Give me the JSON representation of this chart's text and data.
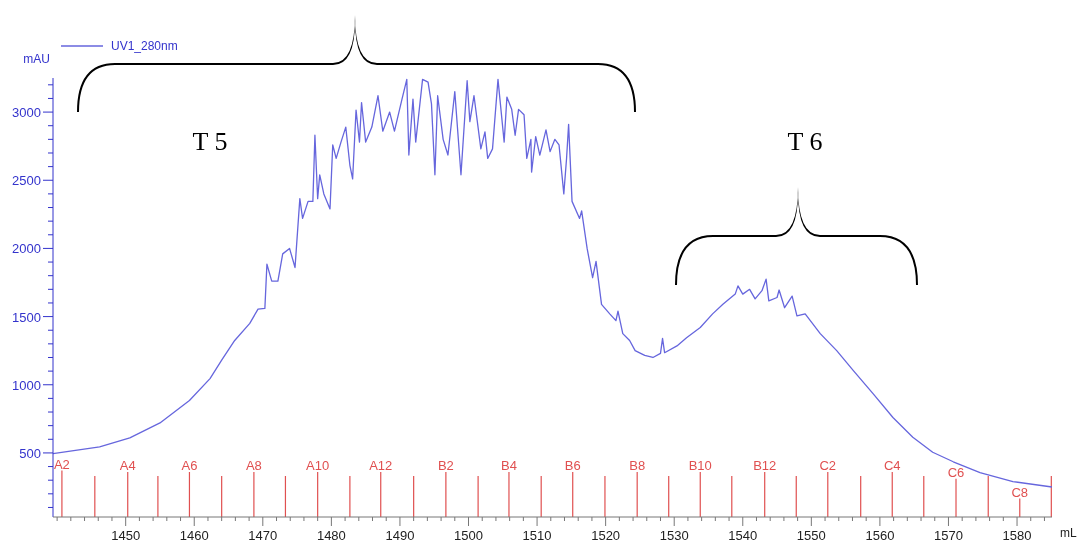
{
  "chart_data": {
    "type": "line",
    "xlabel": "mL",
    "ylabel": "mAU",
    "legend": "top left",
    "marker": "none",
    "line_style": "solid",
    "grid": false,
    "xlim": [
      1439.4,
      1585.1
    ],
    "ylim": [
      30,
      3250
    ],
    "xticks": [
      {
        "value": 1440,
        "label": null
      },
      {
        "value": 1442,
        "label": null
      },
      {
        "value": 1444,
        "label": null
      },
      {
        "value": 1446,
        "label": null
      },
      {
        "value": 1448,
        "label": null
      },
      1450,
      {
        "value": 1452,
        "label": null
      },
      {
        "value": 1454,
        "label": null
      },
      {
        "value": 1456,
        "label": null
      },
      {
        "value": 1458,
        "label": null
      },
      1460,
      {
        "value": 1462,
        "label": null
      },
      {
        "value": 1464,
        "label": null
      },
      {
        "value": 1466,
        "label": null
      },
      {
        "value": 1468,
        "label": null
      },
      1470,
      {
        "value": 1472,
        "label": null
      },
      {
        "value": 1474,
        "label": null
      },
      {
        "value": 1476,
        "label": null
      },
      {
        "value": 1478,
        "label": null
      },
      1480,
      {
        "value": 1482,
        "label": null
      },
      {
        "value": 1484,
        "label": null
      },
      {
        "value": 1486,
        "label": null
      },
      {
        "value": 1488,
        "label": null
      },
      1490,
      {
        "value": 1492,
        "label": null
      },
      {
        "value": 1494,
        "label": null
      },
      {
        "value": 1496,
        "label": null
      },
      {
        "value": 1498,
        "label": null
      },
      1500,
      {
        "value": 1502,
        "label": null
      },
      {
        "value": 1504,
        "label": null
      },
      {
        "value": 1506,
        "label": null
      },
      {
        "value": 1508,
        "label": null
      },
      1510,
      {
        "value": 1512,
        "label": null
      },
      {
        "value": 1514,
        "label": null
      },
      {
        "value": 1516,
        "label": null
      },
      {
        "value": 1518,
        "label": null
      },
      1520,
      {
        "value": 1522,
        "label": null
      },
      {
        "value": 1524,
        "label": null
      },
      {
        "value": 1526,
        "label": null
      },
      {
        "value": 1528,
        "label": null
      },
      1530,
      {
        "value": 1532,
        "label": null
      },
      {
        "value": 1534,
        "label": null
      },
      {
        "value": 1536,
        "label": null
      },
      {
        "value": 1538,
        "label": null
      },
      1540,
      {
        "value": 1542,
        "label": null
      },
      {
        "value": 1544,
        "label": null
      },
      {
        "value": 1546,
        "label": null
      },
      {
        "value": 1548,
        "label": null
      },
      1550,
      {
        "value": 1552,
        "label": null
      },
      {
        "value": 1554,
        "label": null
      },
      {
        "value": 1556,
        "label": null
      },
      {
        "value": 1558,
        "label": null
      },
      1560,
      {
        "value": 1562,
        "label": null
      },
      {
        "value": 1564,
        "label": null
      },
      {
        "value": 1566,
        "label": null
      },
      {
        "value": 1568,
        "label": null
      },
      1570,
      {
        "value": 1572,
        "label": null
      },
      {
        "value": 1574,
        "label": null
      },
      {
        "value": 1576,
        "label": null
      },
      {
        "value": 1578,
        "label": null
      },
      1580,
      {
        "value": 1582,
        "label": null
      },
      {
        "value": 1584,
        "label": null
      }
    ],
    "yticks": [
      {
        "value": 100,
        "label": null
      },
      {
        "value": 200,
        "label": null
      },
      {
        "value": 300,
        "label": null
      },
      {
        "value": 400,
        "label": null
      },
      500,
      {
        "value": 600,
        "label": null
      },
      {
        "value": 700,
        "label": null
      },
      {
        "value": 800,
        "label": null
      },
      {
        "value": 900,
        "label": null
      },
      1000,
      {
        "value": 1100,
        "label": null
      },
      {
        "value": 1200,
        "label": null
      },
      {
        "value": 1300,
        "label": null
      },
      {
        "value": 1400,
        "label": null
      },
      1500,
      {
        "value": 1600,
        "label": null
      },
      {
        "value": 1700,
        "label": null
      },
      {
        "value": 1800,
        "label": null
      },
      {
        "value": 1900,
        "label": null
      },
      2000,
      {
        "value": 2100,
        "label": null
      },
      {
        "value": 2200,
        "label": null
      },
      {
        "value": 2300,
        "label": null
      },
      {
        "value": 2400,
        "label": null
      },
      2500,
      {
        "value": 2600,
        "label": null
      },
      {
        "value": 2700,
        "label": null
      },
      {
        "value": 2800,
        "label": null
      },
      {
        "value": 2900,
        "label": null
      },
      3000,
      {
        "value": 3100,
        "label": null
      },
      {
        "value": 3200,
        "label": null
      }
    ],
    "series": [
      {
        "name": "UV1_280nm",
        "color": "#6666dd",
        "x": [
          1439.4,
          1446.2,
          1450.6,
          1455,
          1459.3,
          1462.3,
          1464,
          1465.9,
          1468.1,
          1469.3,
          1470.3,
          1470.6,
          1471.3,
          1472.2,
          1472.9,
          1473.9,
          1474.7,
          1475.4,
          1475.8,
          1476.6,
          1477.3,
          1477.6,
          1478,
          1478.3,
          1478.9,
          1479.8,
          1480.2,
          1480.7,
          1481.4,
          1482.1,
          1482.7,
          1483.1,
          1483.6,
          1484.1,
          1484.4,
          1485,
          1485.9,
          1486.8,
          1487.5,
          1488.5,
          1489.2,
          1490.3,
          1491,
          1491.3,
          1491.9,
          1492.3,
          1493.3,
          1494.1,
          1494.6,
          1495.1,
          1495.5,
          1496.3,
          1497,
          1498,
          1498.9,
          1499.8,
          1500.2,
          1500.8,
          1501.8,
          1502.4,
          1502.8,
          1503.5,
          1504.3,
          1505.2,
          1505.6,
          1506.3,
          1506.8,
          1507.3,
          1508.1,
          1508.5,
          1509.1,
          1509.2,
          1509.8,
          1510.4,
          1511.3,
          1511.9,
          1512.6,
          1513.2,
          1513.9,
          1514.3,
          1514.6,
          1515.1,
          1516.2,
          1516.5,
          1517.3,
          1518.1,
          1518.6,
          1519.4,
          1520.6,
          1521.5,
          1521.8,
          1522.5,
          1523.5,
          1524.3,
          1525.7,
          1526.9,
          1528,
          1528.3,
          1528.6,
          1530.4,
          1531.8,
          1533.8,
          1535.6,
          1537.1,
          1538.9,
          1539.3,
          1540,
          1541,
          1541.8,
          1542.8,
          1543.4,
          1543.8,
          1545,
          1545.3,
          1546.1,
          1547.2,
          1547.9,
          1549.1,
          1551.3,
          1553.7,
          1556.1,
          1559,
          1561.9,
          1564.8,
          1567.7,
          1570.7,
          1574.6,
          1579.4,
          1585.1
        ],
        "values": [
          495,
          545,
          610,
          720,
          885,
          1045,
          1180,
          1325,
          1450,
          1555,
          1560,
          1885,
          1760,
          1760,
          1960,
          2000,
          1860,
          2365,
          2220,
          2345,
          2345,
          2830,
          2365,
          2540,
          2400,
          2290,
          2760,
          2660,
          2780,
          2890,
          2610,
          2510,
          3015,
          2780,
          3070,
          2780,
          2890,
          3120,
          2860,
          3000,
          2860,
          3095,
          3240,
          2685,
          3095,
          2780,
          3240,
          3220,
          3060,
          2540,
          3120,
          2800,
          2685,
          3150,
          2540,
          3230,
          2930,
          3120,
          2730,
          2855,
          2660,
          2730,
          3240,
          2780,
          3110,
          3020,
          2830,
          3020,
          2980,
          2660,
          2800,
          2560,
          2820,
          2685,
          2870,
          2710,
          2800,
          2760,
          2400,
          2660,
          2910,
          2345,
          2220,
          2275,
          2000,
          1785,
          1905,
          1590,
          1520,
          1470,
          1540,
          1375,
          1325,
          1250,
          1215,
          1200,
          1230,
          1340,
          1235,
          1285,
          1345,
          1420,
          1520,
          1590,
          1665,
          1725,
          1665,
          1700,
          1630,
          1690,
          1775,
          1615,
          1640,
          1695,
          1565,
          1650,
          1505,
          1520,
          1375,
          1250,
          1105,
          935,
          760,
          615,
          505,
          435,
          355,
          290,
          250
        ]
      }
    ],
    "ref_lines": [
      {
        "axis": "x",
        "value": 1440.7,
        "label": "A2",
        "color": "#e05050"
      },
      {
        "axis": "x",
        "value": 1445.5,
        "label": null,
        "color": "#e05050"
      },
      {
        "axis": "x",
        "value": 1450.3,
        "label": "A4",
        "color": "#e05050"
      },
      {
        "axis": "x",
        "value": 1454.7,
        "label": null,
        "color": "#e05050"
      },
      {
        "axis": "x",
        "value": 1459.3,
        "label": "A6",
        "color": "#e05050"
      },
      {
        "axis": "x",
        "value": 1464,
        "label": null,
        "color": "#e05050"
      },
      {
        "axis": "x",
        "value": 1468.7,
        "label": "A8",
        "color": "#e05050"
      },
      {
        "axis": "x",
        "value": 1473.3,
        "label": null,
        "color": "#e05050"
      },
      {
        "axis": "x",
        "value": 1478,
        "label": "A10",
        "color": "#e05050"
      },
      {
        "axis": "x",
        "value": 1482.7,
        "label": null,
        "color": "#e05050"
      },
      {
        "axis": "x",
        "value": 1487.2,
        "label": "A12",
        "color": "#e05050"
      },
      {
        "axis": "x",
        "value": 1492,
        "label": null,
        "color": "#e05050"
      },
      {
        "axis": "x",
        "value": 1496.7,
        "label": "B2",
        "color": "#e05050"
      },
      {
        "axis": "x",
        "value": 1501.4,
        "label": null,
        "color": "#e05050"
      },
      {
        "axis": "x",
        "value": 1505.9,
        "label": "B4",
        "color": "#e05050"
      },
      {
        "axis": "x",
        "value": 1510.6,
        "label": null,
        "color": "#e05050"
      },
      {
        "axis": "x",
        "value": 1515.2,
        "label": "B6",
        "color": "#e05050"
      },
      {
        "axis": "x",
        "value": 1519.9,
        "label": null,
        "color": "#e05050"
      },
      {
        "axis": "x",
        "value": 1524.6,
        "label": "B8",
        "color": "#e05050"
      },
      {
        "axis": "x",
        "value": 1529.2,
        "label": null,
        "color": "#e05050"
      },
      {
        "axis": "x",
        "value": 1533.8,
        "label": "B10",
        "color": "#e05050"
      },
      {
        "axis": "x",
        "value": 1538.4,
        "label": null,
        "color": "#e05050"
      },
      {
        "axis": "x",
        "value": 1543.2,
        "label": "B12",
        "color": "#e05050"
      },
      {
        "axis": "x",
        "value": 1547.8,
        "label": null,
        "color": "#e05050"
      },
      {
        "axis": "x",
        "value": 1552.4,
        "label": "C2",
        "color": "#e05050"
      },
      {
        "axis": "x",
        "value": 1557.2,
        "label": null,
        "color": "#e05050"
      },
      {
        "axis": "x",
        "value": 1561.8,
        "label": "C4",
        "color": "#e05050"
      },
      {
        "axis": "x",
        "value": 1566.4,
        "label": null,
        "color": "#e05050"
      },
      {
        "axis": "x",
        "value": 1571.1,
        "label": "C6",
        "color": "#e05050"
      },
      {
        "axis": "x",
        "value": 1575.8,
        "label": null,
        "color": "#e05050"
      },
      {
        "axis": "x",
        "value": 1580.4,
        "label": "C8",
        "color": "#e05050"
      },
      {
        "axis": "x",
        "value": 1585,
        "label": null,
        "color": "#e05050"
      }
    ],
    "annotations": [
      "T 5",
      "T 6"
    ]
  }
}
